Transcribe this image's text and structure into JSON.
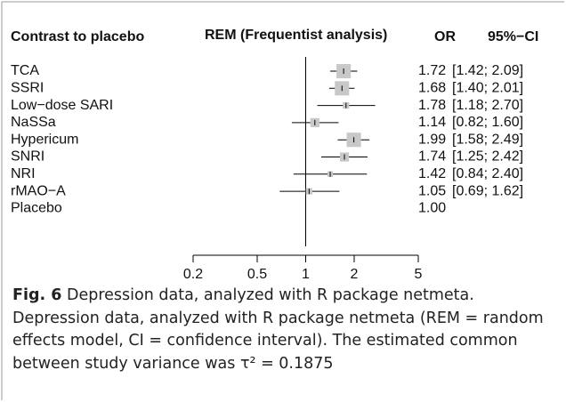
{
  "chart_data": {
    "type": "forest",
    "headers": {
      "contrast": "Contrast to placebo",
      "plot": "REM (Frequentist analysis)",
      "estimate": "OR",
      "ci": "95%−CI"
    },
    "categories": [
      "TCA",
      "SSRI",
      "Low−dose SARI",
      "NaSSa",
      "Hypericum",
      "SNRI",
      "NRI",
      "rMAO−A",
      "Placebo"
    ],
    "values": [
      1.72,
      1.68,
      1.78,
      1.14,
      1.99,
      1.74,
      1.42,
      1.05,
      1.0
    ],
    "value_labels": [
      "1.72",
      "1.68",
      "1.78",
      "1.14",
      "1.99",
      "1.74",
      "1.42",
      "1.05",
      "1.00"
    ],
    "lower": [
      1.42,
      1.4,
      1.18,
      0.82,
      1.58,
      1.25,
      0.84,
      0.69,
      null
    ],
    "upper": [
      2.09,
      2.01,
      2.7,
      1.6,
      2.49,
      2.42,
      2.4,
      1.62,
      null
    ],
    "ci_labels": [
      "[1.42; 2.09]",
      "[1.40; 2.01]",
      "[1.18; 2.70]",
      "[0.82; 1.60]",
      "[1.58; 2.49]",
      "[1.25; 2.42]",
      "[0.84; 2.40]",
      "[0.69; 1.62]",
      null
    ],
    "weights": [
      20,
      20,
      4,
      8,
      20,
      8,
      3,
      4,
      null
    ],
    "color": "#c8c8c8",
    "xscale": "log",
    "xlim": [
      0.2,
      5
    ],
    "xticks": [
      0.2,
      0.5,
      1,
      2,
      5
    ],
    "caption": {
      "label": "Fig. 6",
      "text": "Depression data, analyzed with R package netmeta. Depression data, analyzed with R package netmeta (REM = random effects model, CI = confidence interval). The estimated common between study variance was τ² = 0.1875"
    }
  }
}
